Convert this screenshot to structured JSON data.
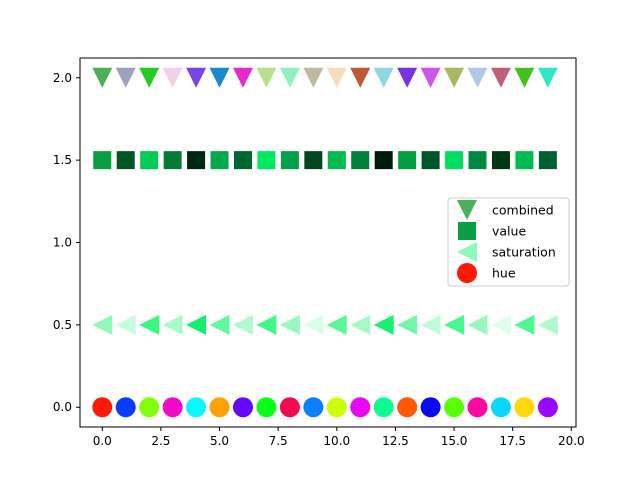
{
  "chart_data": {
    "type": "scatter",
    "title": "",
    "xlabel": "",
    "ylabel": "",
    "xlim": [
      -0.95,
      20.2
    ],
    "ylim": [
      -0.12,
      2.12
    ],
    "xticks": [
      0.0,
      2.5,
      5.0,
      7.5,
      10.0,
      12.5,
      15.0,
      17.5,
      20.0
    ],
    "xtick_labels": [
      "0.0",
      "2.5",
      "5.0",
      "7.5",
      "10.0",
      "12.5",
      "15.0",
      "17.5",
      "20.0"
    ],
    "yticks": [
      0.0,
      0.5,
      1.0,
      1.5,
      2.0
    ],
    "ytick_labels": [
      "0.0",
      "0.5",
      "1.0",
      "1.5",
      "2.0"
    ],
    "grid": false,
    "legend_position": "center-right",
    "x": [
      0,
      1,
      2,
      3,
      4,
      5,
      6,
      7,
      8,
      9,
      10,
      11,
      12,
      13,
      14,
      15,
      16,
      17,
      18,
      19
    ],
    "series": [
      {
        "name": "combined",
        "marker": "triangle-down",
        "y": 2.0,
        "legend_color": "#4caf5a",
        "colors": [
          "#4caf5a",
          "#a0a0c0",
          "#22cc22",
          "#f2d0e8",
          "#7744e8",
          "#1a88cc",
          "#e828c8",
          "#b8e090",
          "#90f0c0",
          "#c0b8a0",
          "#f8dcc0",
          "#c05838",
          "#90d8e0",
          "#7733dd",
          "#cc55ee",
          "#a8b860",
          "#b0c8e8",
          "#c06078",
          "#44c020",
          "#30e8c8"
        ]
      },
      {
        "name": "value",
        "marker": "square",
        "y": 1.5,
        "legend_color": "#089e44",
        "colors": [
          "#089e44",
          "#005520",
          "#00cc55",
          "#087a38",
          "#002810",
          "#00aa48",
          "#006630",
          "#00e860",
          "#00a048",
          "#004820",
          "#00bb50",
          "#008038",
          "#001808",
          "#00a040",
          "#005528",
          "#00e060",
          "#008840",
          "#003814",
          "#00bb50",
          "#006030"
        ]
      },
      {
        "name": "saturation",
        "marker": "triangle-left",
        "y": 0.5,
        "legend_color": "#90f8b8",
        "colors": [
          "#90f8b8",
          "#c8fce0",
          "#38f880",
          "#a8fac8",
          "#10f068",
          "#60f8a0",
          "#b0fad0",
          "#40f888",
          "#98f8c0",
          "#d8fde8",
          "#58f898",
          "#a8f8c8",
          "#18f070",
          "#70f8a8",
          "#c0fcd8",
          "#48f890",
          "#98f8c0",
          "#e0fdee",
          "#50f890",
          "#b0fad0"
        ]
      },
      {
        "name": "hue",
        "marker": "circle",
        "y": 0.0,
        "legend_color": "#ff1a08",
        "colors": [
          "#ff1a08",
          "#0a3cff",
          "#80ff08",
          "#f208c8",
          "#08f8ff",
          "#ffa008",
          "#6608ff",
          "#08ff18",
          "#f20a50",
          "#0a80ff",
          "#ccff08",
          "#e808f2",
          "#08ff90",
          "#ff5808",
          "#0a0af2",
          "#58ff08",
          "#ff08a0",
          "#08d8ff",
          "#ffd808",
          "#9808ff"
        ]
      }
    ]
  }
}
